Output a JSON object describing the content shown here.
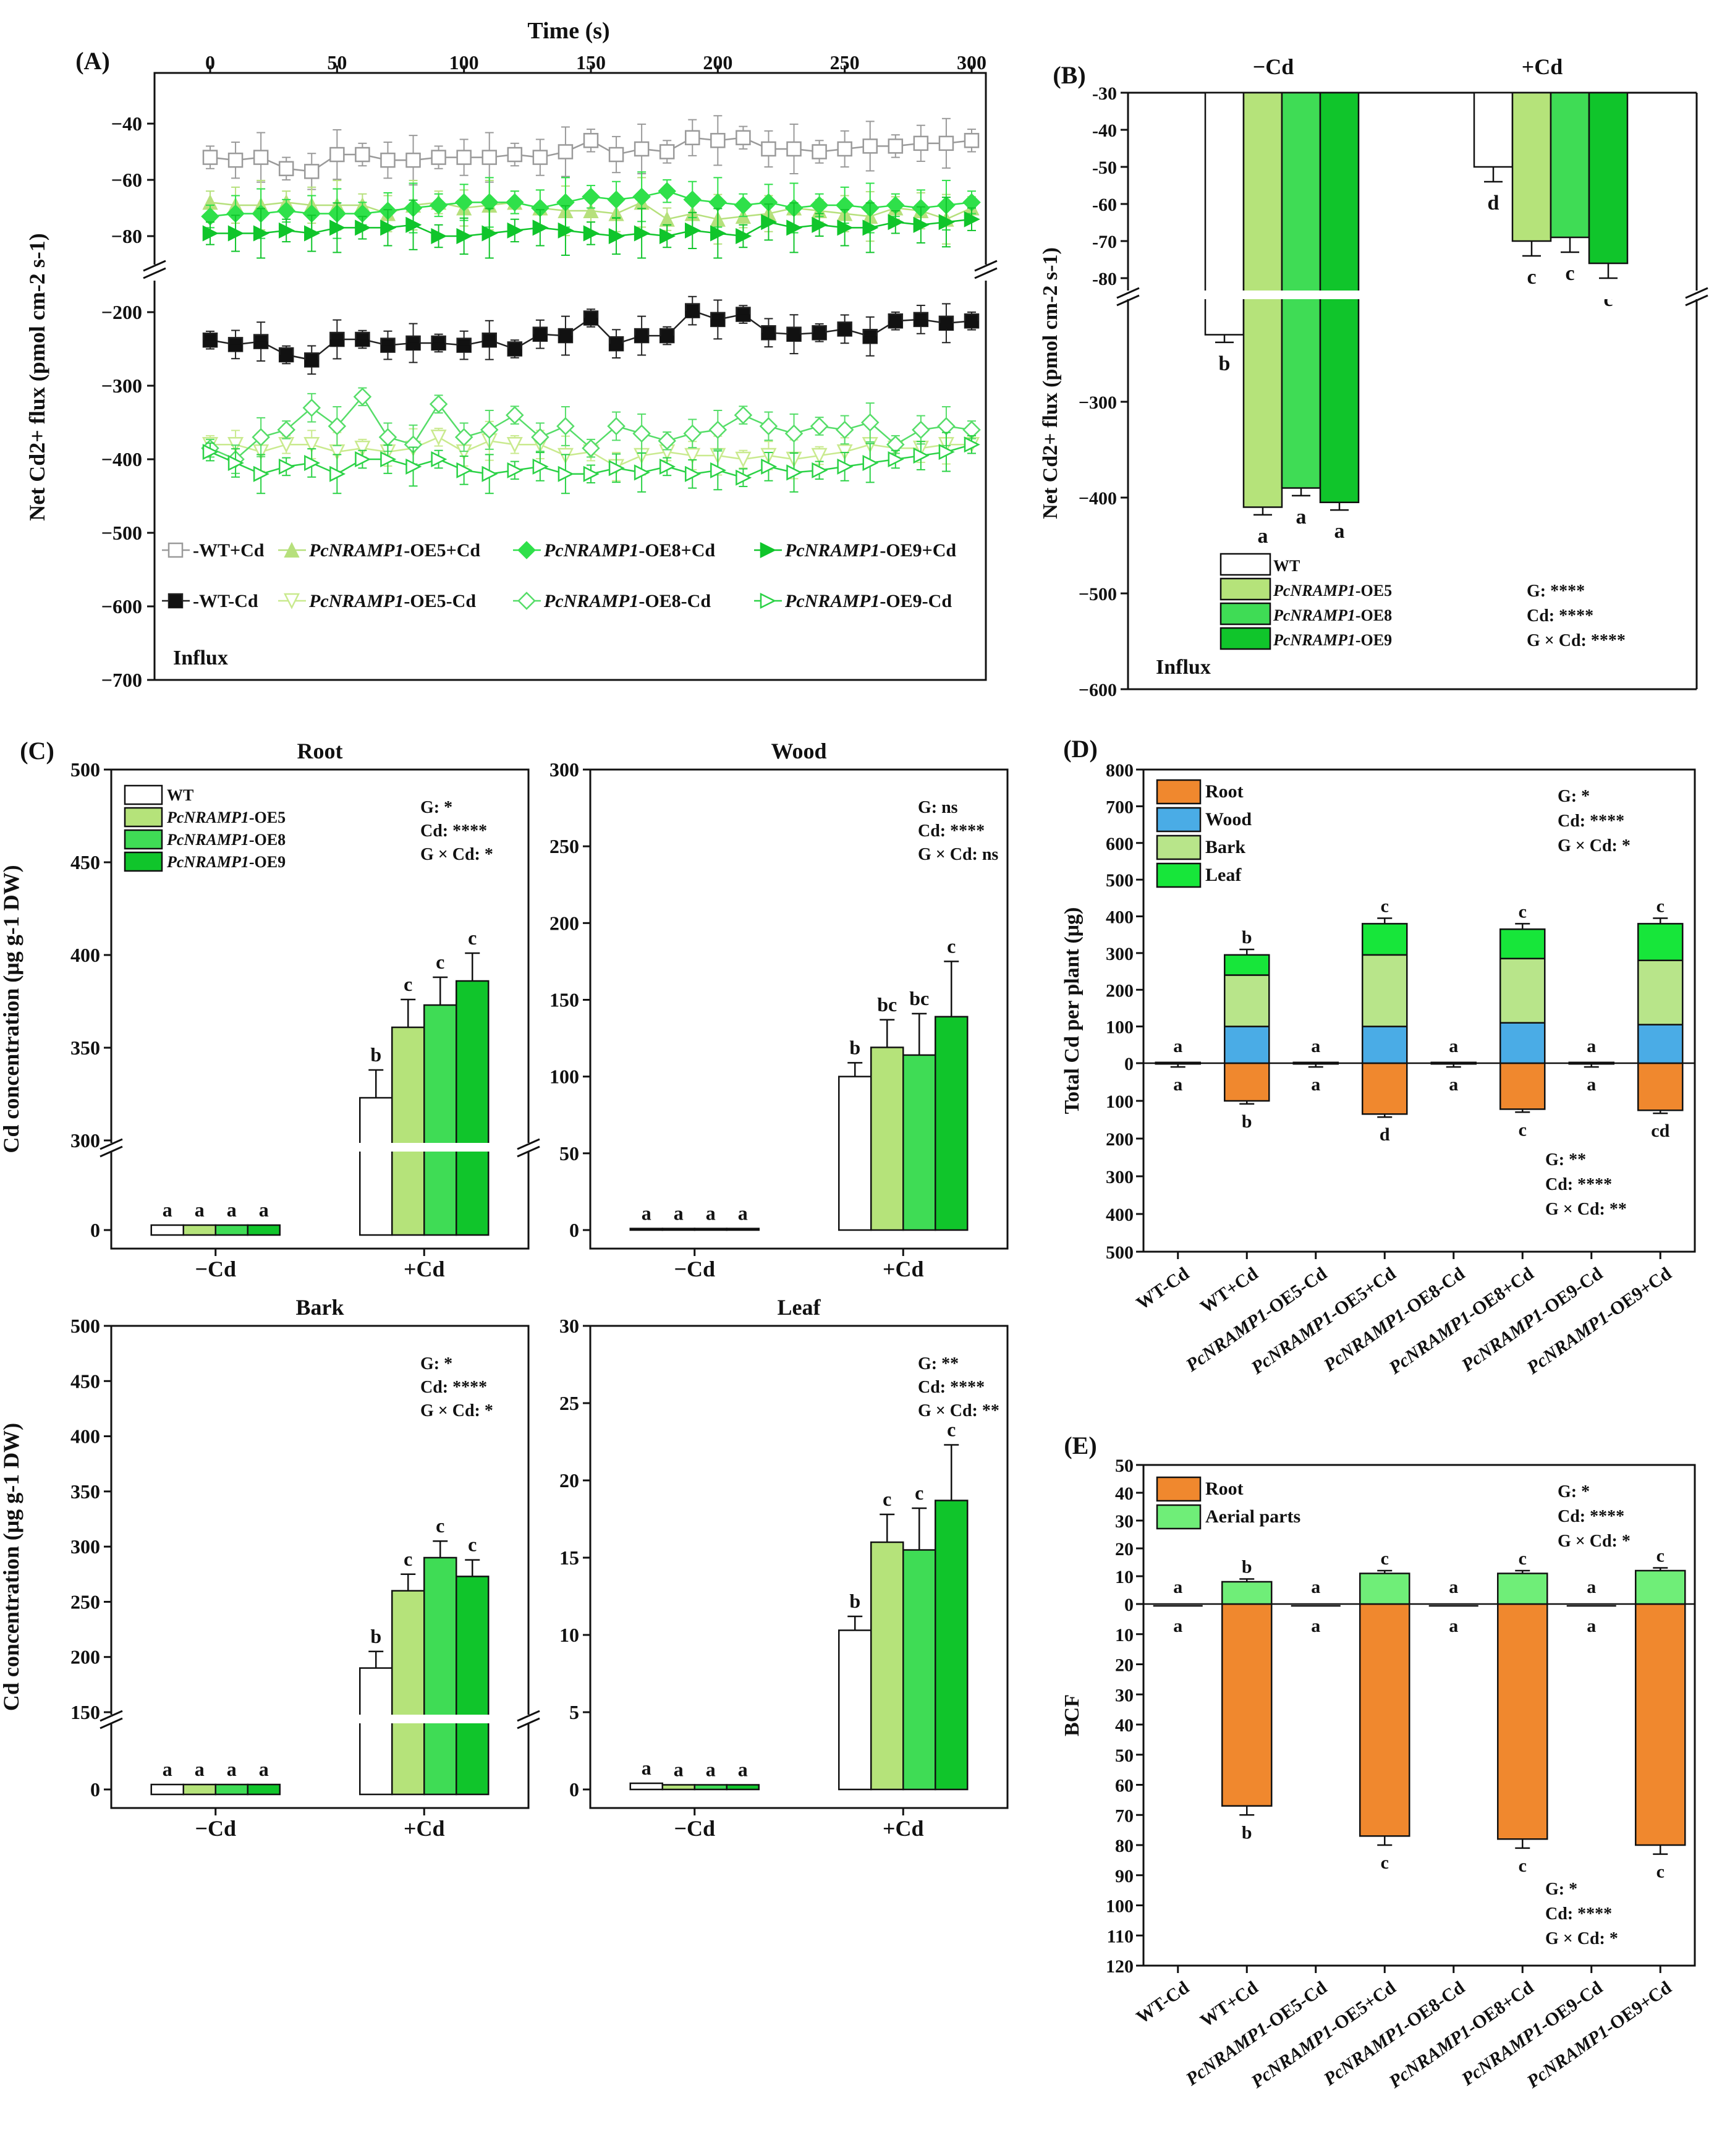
{
  "caption": "Net Cd2+ flux and Cd accumulation in WT and PcNRAMP1-overexpressing lines",
  "panels": {
    "A": "(A)",
    "B": "(B)",
    "C": "(C)",
    "D": "(D)",
    "E": "(E)"
  },
  "genotypes": [
    "WT",
    "PcNRAMP1-OE5",
    "PcNRAMP1-OE8",
    "PcNRAMP1-OE9"
  ],
  "colors": {
    "WT": "#ffffff",
    "OE5": "#b5e37a",
    "OE8": "#3fdc55",
    "OE9": "#10c52b",
    "root": "#f0882e",
    "wood": "#4aace6",
    "bark": "#b8e58a",
    "leaf": "#17e63a",
    "aerial": "#6fee78"
  },
  "chart_data": [
    {
      "id": "A",
      "type": "line",
      "title": "Time (s)",
      "ylabel": "Net Cd2+ flux (pmol cm-2 s-1)",
      "annotation": "Influx",
      "x": [
        0,
        10,
        20,
        30,
        40,
        50,
        60,
        70,
        80,
        90,
        100,
        110,
        120,
        130,
        140,
        150,
        160,
        170,
        180,
        190,
        200,
        210,
        220,
        230,
        240,
        250,
        260,
        270,
        280,
        290,
        300
      ],
      "xticks": [
        0,
        50,
        100,
        150,
        200,
        250,
        300
      ],
      "yticks_upper": [
        -40,
        -60,
        -80
      ],
      "yticks_lower": [
        -200,
        -300,
        -400,
        -500,
        -600,
        -700
      ],
      "series": [
        {
          "name": "WT+Cd",
          "label_plain": "-WT+Cd",
          "values": [
            -52,
            -53,
            -52,
            -56,
            -57,
            -51,
            -51,
            -53,
            -53,
            -52,
            -52,
            -52,
            -51,
            -52,
            -50,
            -46,
            -51,
            -49,
            -50,
            -45,
            -46,
            -45,
            -49,
            -49,
            -50,
            -49,
            -48,
            -48,
            -47,
            -47,
            -46
          ]
        },
        {
          "name": "PcNRAMP1-OE5+Cd",
          "label_italic": "PcNRAMP1",
          "label_plain": "-OE5+Cd",
          "values": [
            -68,
            -69,
            -69,
            -68,
            -69,
            -69,
            -69,
            -72,
            -69,
            -68,
            -70,
            -69,
            -68,
            -70,
            -71,
            -71,
            -72,
            -68,
            -74,
            -72,
            -74,
            -73,
            -72,
            -70,
            -71,
            -72,
            -73,
            -70,
            -71,
            -74,
            -70
          ]
        },
        {
          "name": "PcNRAMP1-OE8+Cd",
          "label_italic": "PcNRAMP1",
          "label_plain": "-OE8+Cd",
          "values": [
            -73,
            -72,
            -72,
            -71,
            -72,
            -72,
            -72,
            -71,
            -70,
            -69,
            -68,
            -68,
            -68,
            -70,
            -68,
            -66,
            -67,
            -66,
            -64,
            -67,
            -68,
            -69,
            -68,
            -70,
            -69,
            -69,
            -70,
            -69,
            -70,
            -69,
            -68
          ]
        },
        {
          "name": "PcNRAMP1-OE9+Cd",
          "label_italic": "PcNRAMP1",
          "label_plain": "-OE9+Cd",
          "values": [
            -79,
            -79,
            -79,
            -78,
            -79,
            -77,
            -77,
            -77,
            -76,
            -80,
            -80,
            -79,
            -78,
            -77,
            -78,
            -79,
            -80,
            -79,
            -80,
            -78,
            -79,
            -80,
            -75,
            -77,
            -76,
            -77,
            -77,
            -75,
            -76,
            -75,
            -74
          ]
        },
        {
          "name": "WT-Cd",
          "label_plain": "-WT-Cd",
          "values": [
            -238,
            -244,
            -240,
            -258,
            -265,
            -237,
            -237,
            -245,
            -242,
            -242,
            -245,
            -238,
            -250,
            -230,
            -232,
            -208,
            -243,
            -232,
            -232,
            -198,
            -210,
            -203,
            -228,
            -230,
            -228,
            -223,
            -233,
            -212,
            -210,
            -215,
            -212
          ]
        },
        {
          "name": "PcNRAMP1-OE5-Cd",
          "label_italic": "PcNRAMP1",
          "label_plain": "-OE5-Cd",
          "values": [
            -380,
            -380,
            -390,
            -380,
            -380,
            -390,
            -385,
            -390,
            -385,
            -370,
            -390,
            -375,
            -380,
            -380,
            -395,
            -390,
            -410,
            -395,
            -390,
            -395,
            -395,
            -400,
            -395,
            -400,
            -395,
            -390,
            -380,
            -385,
            -385,
            -380,
            -380
          ]
        },
        {
          "name": "PcNRAMP1-OE8-Cd",
          "label_italic": "PcNRAMP1",
          "label_plain": "-OE8-Cd",
          "values": [
            -385,
            -400,
            -370,
            -360,
            -330,
            -355,
            -315,
            -370,
            -380,
            -325,
            -370,
            -360,
            -340,
            -370,
            -355,
            -385,
            -355,
            -365,
            -375,
            -365,
            -360,
            -340,
            -355,
            -365,
            -355,
            -360,
            -350,
            -380,
            -360,
            -355,
            -360
          ]
        },
        {
          "name": "PcNRAMP1-OE9-Cd",
          "label_italic": "PcNRAMP1",
          "label_plain": "-OE9-Cd",
          "values": [
            -390,
            -405,
            -420,
            -410,
            -405,
            -420,
            -400,
            -400,
            -410,
            -400,
            -415,
            -420,
            -415,
            -410,
            -420,
            -420,
            -412,
            -418,
            -410,
            -420,
            -415,
            -425,
            -410,
            -418,
            -415,
            -410,
            -405,
            -400,
            -395,
            -390,
            -380
          ]
        }
      ]
    },
    {
      "id": "B",
      "type": "bar",
      "ylabel": "Net Cd2+ flux (pmol cm-2 s-1)",
      "annotation": "Influx",
      "categories": [
        "−Cd",
        "+Cd"
      ],
      "yticks_upper": [
        -30,
        -40,
        -50,
        -60,
        -70,
        -80
      ],
      "yticks_lower": [
        -300,
        -400,
        -500,
        -600
      ],
      "series": [
        {
          "name": "WT",
          "values": [
            -230,
            -50
          ],
          "letters": [
            "b",
            "d"
          ]
        },
        {
          "name": "PcNRAMP1-OE5",
          "values": [
            -410,
            -70
          ],
          "letters": [
            "a",
            "c"
          ]
        },
        {
          "name": "PcNRAMP1-OE8",
          "values": [
            -390,
            -69
          ],
          "letters": [
            "a",
            "c"
          ]
        },
        {
          "name": "PcNRAMP1-OE9",
          "values": [
            -405,
            -76
          ],
          "letters": [
            "a",
            "c"
          ]
        }
      ],
      "stats": [
        "G: ****",
        "Cd: ****",
        "G × Cd: ****"
      ]
    },
    {
      "id": "C-Root",
      "type": "bar",
      "title": "Root",
      "ylabel": "Cd concentration (μg g-1 DW)",
      "categories": [
        "−Cd",
        "+Cd"
      ],
      "yticks_upper": [
        300,
        350,
        400,
        450,
        500
      ],
      "yticks_lower": [
        0
      ],
      "series": [
        {
          "name": "WT",
          "values": [
            1,
            323
          ],
          "letters": [
            "a",
            "b"
          ]
        },
        {
          "name": "PcNRAMP1-OE5",
          "values": [
            1,
            361
          ],
          "letters": [
            "a",
            "c"
          ]
        },
        {
          "name": "PcNRAMP1-OE8",
          "values": [
            1,
            373
          ],
          "letters": [
            "a",
            "c"
          ]
        },
        {
          "name": "PcNRAMP1-OE9",
          "values": [
            1,
            386
          ],
          "letters": [
            "a",
            "c"
          ]
        }
      ],
      "stats": [
        "G: *",
        "Cd: ****",
        "G × Cd: *"
      ]
    },
    {
      "id": "C-Wood",
      "type": "bar",
      "title": "Wood",
      "categories": [
        "−Cd",
        "+Cd"
      ],
      "ylim": [
        0,
        300
      ],
      "series": [
        {
          "name": "WT",
          "values": [
            1,
            100
          ],
          "letters": [
            "a",
            "b"
          ]
        },
        {
          "name": "PcNRAMP1-OE5",
          "values": [
            1,
            119
          ],
          "letters": [
            "a",
            "bc"
          ]
        },
        {
          "name": "PcNRAMP1-OE8",
          "values": [
            1,
            114
          ],
          "letters": [
            "a",
            "bc"
          ]
        },
        {
          "name": "PcNRAMP1-OE9",
          "values": [
            1,
            139
          ],
          "letters": [
            "a",
            "c"
          ]
        }
      ],
      "stats": [
        "G: ns",
        "Cd: ****",
        "G × Cd: ns"
      ]
    },
    {
      "id": "C-Bark",
      "type": "bar",
      "title": "Bark",
      "ylabel": "Cd concentration (μg g-1 DW)",
      "categories": [
        "−Cd",
        "+Cd"
      ],
      "yticks_upper": [
        150,
        200,
        250,
        300,
        350,
        400,
        450,
        500
      ],
      "yticks_lower": [
        0
      ],
      "series": [
        {
          "name": "WT",
          "values": [
            1,
            190
          ],
          "letters": [
            "a",
            "b"
          ]
        },
        {
          "name": "PcNRAMP1-OE5",
          "values": [
            1,
            260
          ],
          "letters": [
            "a",
            "c"
          ]
        },
        {
          "name": "PcNRAMP1-OE8",
          "values": [
            1,
            290
          ],
          "letters": [
            "a",
            "c"
          ]
        },
        {
          "name": "PcNRAMP1-OE9",
          "values": [
            1,
            273
          ],
          "letters": [
            "a",
            "c"
          ]
        }
      ],
      "stats": [
        "G: *",
        "Cd: ****",
        "G × Cd: *"
      ]
    },
    {
      "id": "C-Leaf",
      "type": "bar",
      "title": "Leaf",
      "categories": [
        "−Cd",
        "+Cd"
      ],
      "ylim": [
        0,
        30
      ],
      "series": [
        {
          "name": "WT",
          "values": [
            0.4,
            10.3
          ],
          "letters": [
            "a",
            "b"
          ]
        },
        {
          "name": "PcNRAMP1-OE5",
          "values": [
            0.3,
            16.0
          ],
          "letters": [
            "a",
            "c"
          ]
        },
        {
          "name": "PcNRAMP1-OE8",
          "values": [
            0.3,
            15.5
          ],
          "letters": [
            "a",
            "c"
          ]
        },
        {
          "name": "PcNRAMP1-OE9",
          "values": [
            0.3,
            18.7
          ],
          "letters": [
            "a",
            "c"
          ]
        }
      ],
      "stats": [
        "G: **",
        "Cd: ****",
        "G × Cd: **"
      ]
    },
    {
      "id": "D",
      "type": "bar",
      "ylabel": "Total Cd per plant (μg)",
      "categories": [
        "WT-Cd",
        "WT+Cd",
        "PcNRAMP1-OE5-Cd",
        "PcNRAMP1-OE5+Cd",
        "PcNRAMP1-OE8-Cd",
        "PcNRAMP1-OE8+Cd",
        "PcNRAMP1-OE9-Cd",
        "PcNRAMP1-OE9+Cd"
      ],
      "yticks_up": [
        0,
        100,
        200,
        300,
        400,
        500,
        600,
        700,
        800
      ],
      "yticks_down": [
        100,
        200,
        300,
        400,
        500
      ],
      "series": [
        {
          "name": "Root",
          "values": [
            2,
            100,
            2,
            135,
            2,
            122,
            2,
            125
          ]
        },
        {
          "name": "Wood",
          "values": [
            2,
            100,
            2,
            100,
            2,
            110,
            2,
            105
          ]
        },
        {
          "name": "Bark",
          "values": [
            1,
            140,
            1,
            195,
            1,
            175,
            1,
            175
          ]
        },
        {
          "name": "Leaf",
          "values": [
            0.5,
            55,
            0.5,
            85,
            0.5,
            80,
            0.5,
            100
          ]
        }
      ],
      "letters_top": [
        "a",
        "b",
        "a",
        "c",
        "a",
        "c",
        "a",
        "c"
      ],
      "letters_bottom": [
        "a",
        "b",
        "a",
        "d",
        "a",
        "c",
        "a",
        "cd"
      ],
      "stats_top": [
        "G: *",
        "Cd: ****",
        "G × Cd: *"
      ],
      "stats_bottom": [
        "G: **",
        "Cd: ****",
        "G × Cd: **"
      ]
    },
    {
      "id": "E",
      "type": "bar",
      "ylabel": "BCF",
      "categories": [
        "WT-Cd",
        "WT+Cd",
        "PcNRAMP1-OE5-Cd",
        "PcNRAMP1-OE5+Cd",
        "PcNRAMP1-OE8-Cd",
        "PcNRAMP1-OE8+Cd",
        "PcNRAMP1-OE9-Cd",
        "PcNRAMP1-OE9+Cd"
      ],
      "yticks_up": [
        0,
        10,
        20,
        30,
        40,
        50
      ],
      "yticks_down": [
        10,
        20,
        30,
        40,
        50,
        60,
        70,
        80,
        90,
        100,
        110,
        120
      ],
      "series": [
        {
          "name": "Root",
          "values": [
            0,
            67,
            0,
            77,
            0,
            78,
            0,
            80
          ]
        },
        {
          "name": "Aerial parts",
          "values": [
            0,
            8,
            0,
            11,
            0,
            11,
            0,
            12
          ]
        }
      ],
      "letters_top": [
        "a",
        "b",
        "a",
        "c",
        "a",
        "c",
        "a",
        "c"
      ],
      "letters_bottom": [
        "a",
        "b",
        "a",
        "c",
        "a",
        "c",
        "a",
        "c"
      ],
      "stats_top": [
        "G: *",
        "Cd: ****",
        "G × Cd: *"
      ],
      "stats_bottom": [
        "G: *",
        "Cd: ****",
        "G × Cd: *"
      ]
    }
  ]
}
